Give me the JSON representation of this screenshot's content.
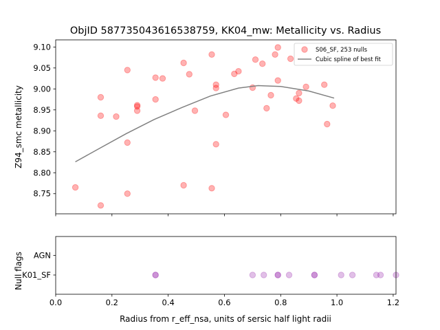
{
  "chart_data": [
    {
      "type": "scatter",
      "title": "ObjID 587735043616538759, KK04_mw: Metallicity vs. Radius",
      "xlabel": "",
      "ylabel": "Z94_smc metallicity",
      "xlim": [
        0.0,
        1.21
      ],
      "ylim": [
        8.702,
        9.117
      ],
      "yticks": [
        8.75,
        8.8,
        8.85,
        8.9,
        8.95,
        9.0,
        9.05,
        9.1
      ],
      "ytick_labels": [
        "8.75",
        "8.80",
        "8.85",
        "8.90",
        "8.95",
        "9.00",
        "9.05",
        "9.10"
      ],
      "legend_position": "top-right",
      "grid": false,
      "series": [
        {
          "name": "S06_SF, 253 nulls",
          "kind": "points",
          "color": "#ff0000",
          "points": [
            [
              0.07,
              8.765
            ],
            [
              0.16,
              8.722
            ],
            [
              0.16,
              8.936
            ],
            [
              0.16,
              8.98
            ],
            [
              0.215,
              8.934
            ],
            [
              0.255,
              8.75
            ],
            [
              0.255,
              8.872
            ],
            [
              0.255,
              9.045
            ],
            [
              0.29,
              8.948
            ],
            [
              0.29,
              8.958
            ],
            [
              0.29,
              8.961
            ],
            [
              0.355,
              8.975
            ],
            [
              0.355,
              9.027
            ],
            [
              0.38,
              9.025
            ],
            [
              0.455,
              8.77
            ],
            [
              0.455,
              9.062
            ],
            [
              0.475,
              9.035
            ],
            [
              0.495,
              8.948
            ],
            [
              0.555,
              8.763
            ],
            [
              0.555,
              9.082
            ],
            [
              0.57,
              8.868
            ],
            [
              0.57,
              9.002
            ],
            [
              0.57,
              9.01
            ],
            [
              0.605,
              8.938
            ],
            [
              0.635,
              9.036
            ],
            [
              0.65,
              9.042
            ],
            [
              0.7,
              9.003
            ],
            [
              0.71,
              9.07
            ],
            [
              0.735,
              9.06
            ],
            [
              0.75,
              8.954
            ],
            [
              0.765,
              8.985
            ],
            [
              0.78,
              9.082
            ],
            [
              0.79,
              9.02
            ],
            [
              0.79,
              9.099
            ],
            [
              0.835,
              9.072
            ],
            [
              0.855,
              8.977
            ],
            [
              0.865,
              8.972
            ],
            [
              0.865,
              8.99
            ],
            [
              0.89,
              9.005
            ],
            [
              0.955,
              9.01
            ],
            [
              0.965,
              8.916
            ],
            [
              0.985,
              8.96
            ]
          ]
        },
        {
          "name": "Cubic spline of best fit",
          "kind": "line",
          "color": "#808080",
          "x": [
            0.07,
            0.15,
            0.25,
            0.35,
            0.45,
            0.55,
            0.65,
            0.72,
            0.8,
            0.9,
            0.99
          ],
          "y": [
            8.826,
            8.856,
            8.893,
            8.927,
            8.956,
            8.983,
            9.002,
            9.008,
            9.006,
            8.995,
            8.978
          ]
        }
      ]
    },
    {
      "type": "scatter",
      "title": "",
      "xlabel": "Radius from r_eff_nsa, units of sersic half light radii",
      "ylabel": "Null flags",
      "xlim": [
        0.0,
        1.21
      ],
      "xticks": [
        0.0,
        0.2,
        0.4,
        0.6,
        0.8,
        1.0,
        1.2
      ],
      "xtick_labels": [
        "0.0",
        "0.2",
        "0.4",
        "0.6",
        "0.8",
        "1.0",
        "1.2"
      ],
      "categories": [
        "K01_SF",
        "AGN"
      ],
      "grid": false,
      "series": [
        {
          "name": "",
          "color": "#9b30b0",
          "category": "K01_SF",
          "x": [
            0.355,
            0.355,
            0.7,
            0.74,
            0.79,
            0.79,
            0.83,
            0.92,
            0.92,
            1.015,
            1.055,
            1.14,
            1.155,
            1.21
          ]
        }
      ]
    }
  ]
}
